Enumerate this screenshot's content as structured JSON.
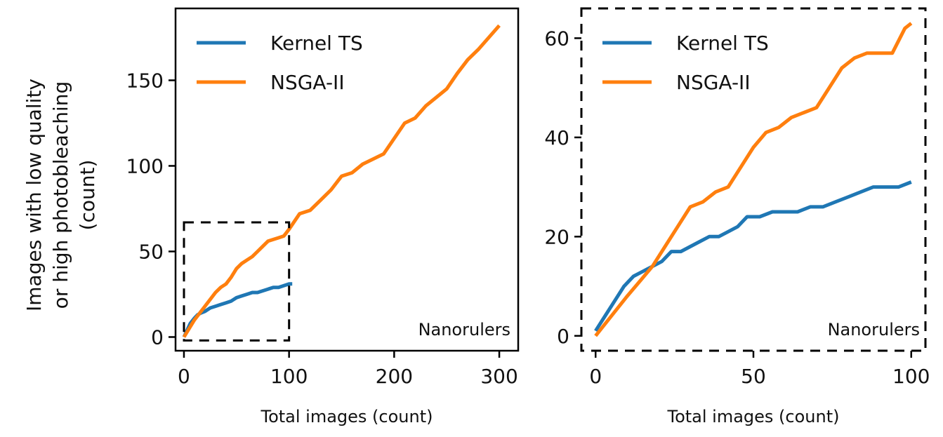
{
  "ylabel_lines": [
    "Images with low quality",
    "or high photobleaching",
    "(count)"
  ],
  "colors": {
    "kernel_ts": "#1f77b4",
    "nsga_ii": "#ff7f0e",
    "axis": "#000000"
  },
  "chart_data": [
    {
      "type": "line",
      "xlabel": "Total images (count)",
      "ylabel": "Images with low quality or high photobleaching (count)",
      "xlim": [
        -8,
        318
      ],
      "ylim": [
        -8,
        192
      ],
      "xticks": [
        0,
        100,
        200,
        300
      ],
      "yticks": [
        0,
        50,
        100,
        150
      ],
      "legend_position": "top-left",
      "annotation": "Nanorulers",
      "zoom_box": {
        "x": [
          0,
          100
        ],
        "y": [
          -2,
          67
        ]
      },
      "series": [
        {
          "name": "Kernel TS",
          "color": "#1f77b4",
          "x": [
            0,
            3,
            6,
            10,
            13,
            16,
            20,
            25,
            30,
            35,
            40,
            45,
            50,
            55,
            60,
            65,
            70,
            75,
            80,
            85,
            90,
            95,
            100,
            103
          ],
          "y": [
            0,
            4,
            8,
            11,
            13,
            14,
            15,
            17,
            18,
            19,
            20,
            21,
            23,
            24,
            25,
            26,
            26,
            27,
            28,
            29,
            29,
            30,
            31,
            31
          ]
        },
        {
          "name": "NSGA-II",
          "color": "#ff7f0e",
          "x": [
            0,
            10,
            20,
            30,
            35,
            40,
            45,
            50,
            55,
            60,
            65,
            70,
            75,
            80,
            85,
            90,
            95,
            100,
            110,
            120,
            130,
            140,
            150,
            160,
            170,
            180,
            190,
            200,
            210,
            220,
            230,
            240,
            250,
            260,
            270,
            280,
            290,
            300
          ],
          "y": [
            0,
            10,
            18,
            26,
            29,
            31,
            35,
            40,
            43,
            45,
            47,
            50,
            53,
            56,
            57,
            58,
            59,
            63,
            72,
            74,
            80,
            86,
            94,
            96,
            101,
            104,
            107,
            116,
            125,
            128,
            135,
            140,
            145,
            154,
            162,
            168,
            175,
            182
          ]
        }
      ]
    },
    {
      "type": "line",
      "xlabel": "Total images (count)",
      "xlim": [
        -4.5,
        104.5
      ],
      "ylim": [
        -3,
        66
      ],
      "xticks": [
        0,
        50,
        100
      ],
      "yticks": [
        0,
        20,
        40,
        60
      ],
      "legend_position": "top-left",
      "annotation": "Nanorulers",
      "series": [
        {
          "name": "Kernel TS",
          "color": "#1f77b4",
          "x": [
            0,
            3,
            6,
            9,
            12,
            15,
            18,
            21,
            24,
            27,
            30,
            33,
            36,
            39,
            42,
            45,
            48,
            52,
            56,
            60,
            64,
            68,
            72,
            76,
            80,
            84,
            88,
            92,
            96,
            100
          ],
          "y": [
            1,
            4,
            7,
            10,
            12,
            13,
            14,
            15,
            17,
            17,
            18,
            19,
            20,
            20,
            21,
            22,
            24,
            24,
            25,
            25,
            25,
            26,
            26,
            27,
            28,
            29,
            30,
            30,
            30,
            31
          ]
        },
        {
          "name": "NSGA-II",
          "color": "#ff7f0e",
          "x": [
            0,
            5,
            10,
            14,
            18,
            22,
            26,
            30,
            34,
            38,
            42,
            46,
            50,
            54,
            58,
            62,
            66,
            70,
            74,
            78,
            82,
            86,
            90,
            94,
            98,
            100
          ],
          "y": [
            0,
            4,
            8,
            11,
            14,
            18,
            22,
            26,
            27,
            29,
            30,
            34,
            38,
            41,
            42,
            44,
            45,
            46,
            50,
            54,
            56,
            57,
            57,
            57,
            62,
            63
          ]
        }
      ]
    }
  ]
}
